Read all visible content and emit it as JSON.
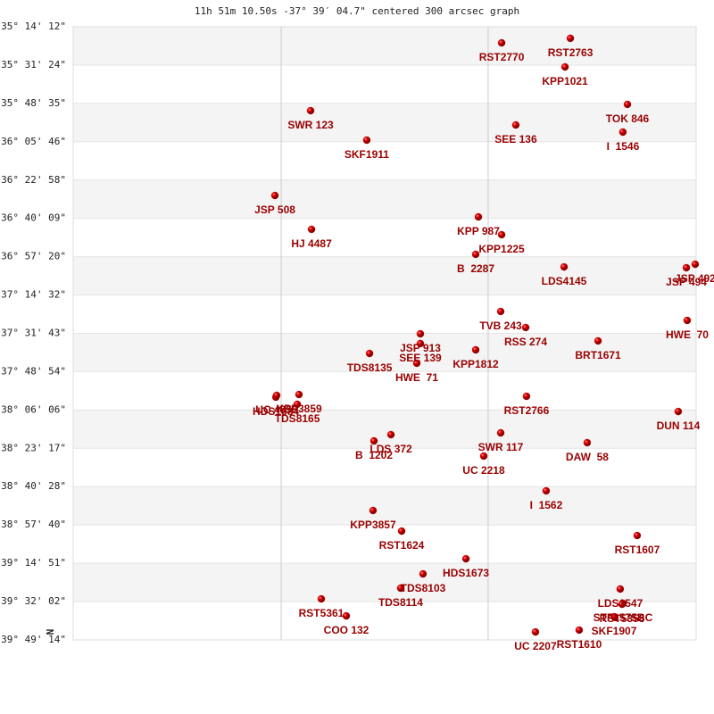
{
  "chart_data": {
    "type": "scatter",
    "title": "11h 51m 10.50s -37° 39′ 04.7\" centered 300 arcsec graph",
    "north_label": "N",
    "marker_color": "#cc0000",
    "label_color": "#990000",
    "xlim": [
      -2.33,
      2.33
    ],
    "ylim": [
      -39.8206,
      -35.2367
    ],
    "xgrid_lines": [
      -0.774,
      0.774
    ],
    "yticks": [
      {
        "value": -35.2367,
        "label": "-35° 14' 12\""
      },
      {
        "value": -35.5233,
        "label": "-35° 31' 24\""
      },
      {
        "value": -35.8097,
        "label": "-35° 48' 35\""
      },
      {
        "value": -36.0961,
        "label": "-36° 05' 46\""
      },
      {
        "value": -36.3828,
        "label": "-36° 22' 58\""
      },
      {
        "value": -36.6692,
        "label": "-36° 40' 09\""
      },
      {
        "value": -36.9556,
        "label": "-36° 57' 20\""
      },
      {
        "value": -37.2422,
        "label": "-37° 14' 32\""
      },
      {
        "value": -37.5286,
        "label": "-37° 31' 43\""
      },
      {
        "value": -37.815,
        "label": "-37° 48' 54\""
      },
      {
        "value": -38.1017,
        "label": "-38° 06' 06\""
      },
      {
        "value": -38.3881,
        "label": "-38° 23' 17\""
      },
      {
        "value": -38.6744,
        "label": "-38° 40' 28\""
      },
      {
        "value": -38.9611,
        "label": "-38° 57' 40\""
      },
      {
        "value": -39.2475,
        "label": "-39° 14' 51\""
      },
      {
        "value": -39.5339,
        "label": "-39° 32' 02\""
      },
      {
        "value": -39.8206,
        "label": "-39° 49' 14\""
      }
    ],
    "point_labels": [
      "RST2770",
      "RST2763",
      "KPP1021",
      "SWR 123",
      "SEE 136",
      "TOK 846",
      "I  1546",
      "SKF1911",
      "JSP 508",
      "HJ 4487",
      "KPP 987",
      "KPP1225",
      "B  2287",
      "LDS4145",
      "JSP 492",
      "JSP 494",
      "TVB 243",
      "RSS 274",
      "HWE  70",
      "JSP 913",
      "SEE 139",
      "BRT1671",
      "TDS8135",
      "KPP1812",
      "HWE  71",
      "RST2766",
      "HDS1684",
      "KPP3859",
      "UC 4855",
      "TDS8165",
      "DUN 114",
      "LDS 372",
      "B  1202",
      "SWR 117",
      "UC 2218",
      "DAW  58",
      "I  1562",
      "KPP3857",
      "RST1624",
      "RST1607",
      "HDS1673",
      "TDS8103",
      "TDS8114",
      "RST5361",
      "COO 132",
      "LDS1547",
      "STF1575BC",
      "RST5358",
      "SKF1907",
      "RST1610",
      "UC 2207"
    ],
    "x": [
      0.875,
      1.389,
      1.349,
      -0.554,
      0.981,
      1.816,
      1.782,
      -0.134,
      -0.821,
      -0.547,
      0.701,
      0.875,
      0.681,
      1.342,
      2.323,
      2.257,
      0.868,
      1.055,
      2.263,
      0.267,
      0.267,
      1.596,
      -0.113,
      0.681,
      0.24,
      1.061,
      -0.814,
      -0.641,
      -0.808,
      -0.654,
      2.196,
      0.047,
      -0.08,
      0.868,
      0.741,
      1.515,
      1.208,
      -0.087,
      0.127,
      1.889,
      0.608,
      0.287,
      0.12,
      -0.474,
      -0.287,
      1.762,
      1.782,
      1.776,
      1.716,
      1.455,
      1.128
    ],
    "values": [
      -35.357,
      -35.323,
      -35.537,
      -35.864,
      -35.971,
      -35.817,
      -36.024,
      -36.084,
      -36.498,
      -36.751,
      -36.658,
      -36.791,
      -36.938,
      -37.032,
      -37.012,
      -37.038,
      -37.365,
      -37.485,
      -37.432,
      -37.532,
      -37.605,
      -37.585,
      -37.679,
      -37.652,
      -37.752,
      -37.999,
      -38.006,
      -37.986,
      -37.992,
      -38.059,
      -38.113,
      -38.286,
      -38.333,
      -38.273,
      -38.446,
      -38.346,
      -38.706,
      -38.853,
      -39.007,
      -39.04,
      -39.214,
      -39.327,
      -39.434,
      -39.514,
      -39.641,
      -39.44,
      -39.547,
      -39.554,
      -39.647,
      -39.747,
      -39.761
    ]
  }
}
